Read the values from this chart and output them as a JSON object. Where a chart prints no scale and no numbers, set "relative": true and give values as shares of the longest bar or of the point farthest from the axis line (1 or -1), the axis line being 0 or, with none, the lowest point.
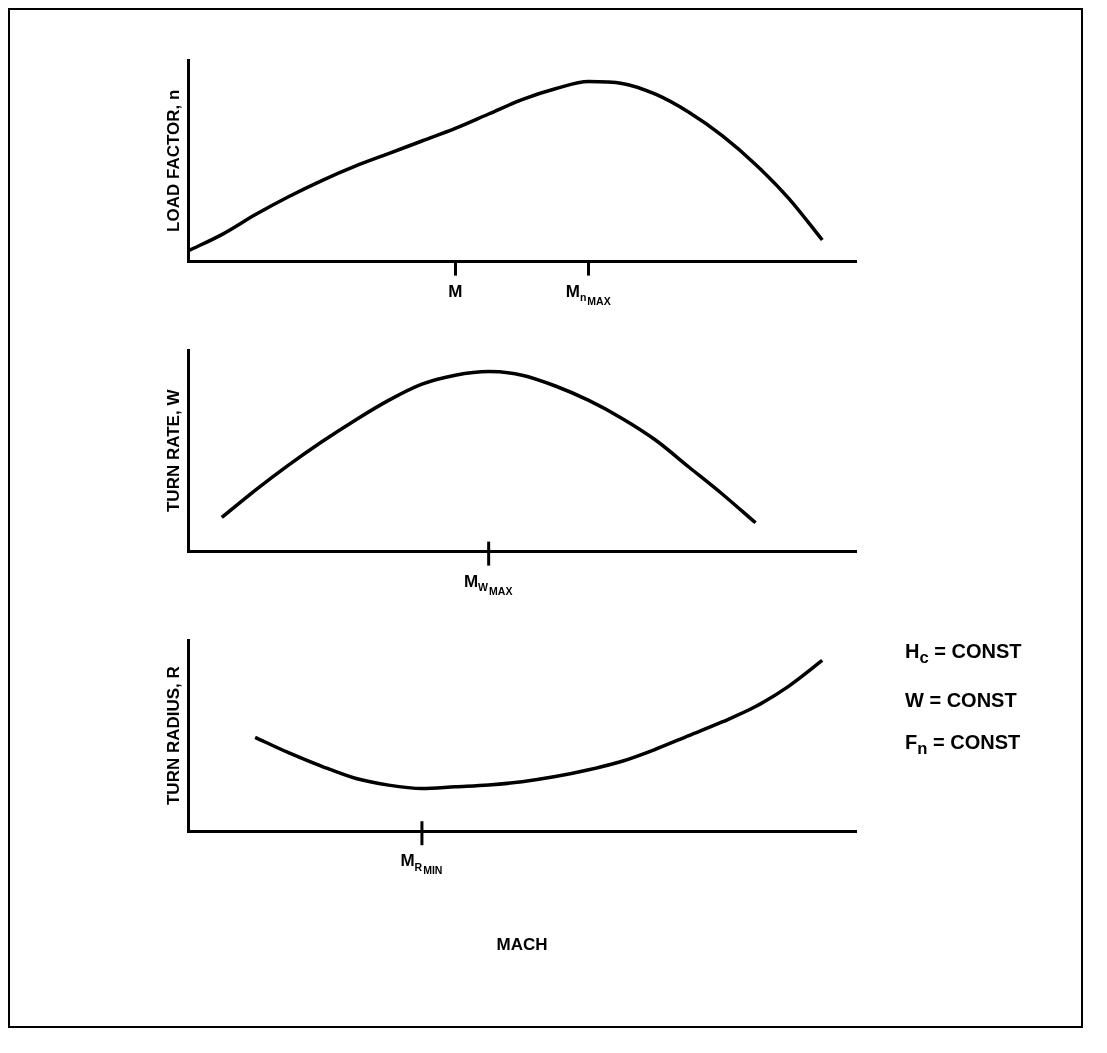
{
  "chart_data": [
    {
      "type": "line",
      "ylabel": "LOAD FACTOR, n",
      "relative": true,
      "color": "#000000",
      "legend": false,
      "grid": false,
      "marker": "none",
      "categories": [
        null,
        null,
        null,
        null,
        null,
        null,
        null,
        null,
        "M",
        null,
        null,
        null,
        "M$_{n}$$_{MAX}$",
        null,
        null,
        null,
        null,
        null,
        null,
        null,
        null
      ],
      "values": [
        0.06,
        0.15,
        0.26,
        0.36,
        0.45,
        0.53,
        0.6,
        0.67,
        0.74,
        0.82,
        0.9,
        0.96,
        1,
        0.99,
        0.93,
        0.83,
        0.7,
        0.54,
        0.35,
        0.12,
        null
      ]
    },
    {
      "type": "line",
      "ylabel": "TURN RATE, W",
      "relative": true,
      "color": "#000000",
      "legend": false,
      "grid": false,
      "marker": "none",
      "annotations": [
        "M$_{W}$$_{MAX}$"
      ],
      "categories": [
        null,
        null,
        null,
        null,
        null,
        null,
        null,
        null,
        null,
        null,
        null,
        null,
        null,
        null,
        null,
        null,
        null,
        null,
        null,
        null,
        null
      ],
      "values": [
        null,
        0.19,
        0.34,
        0.48,
        0.61,
        0.73,
        0.84,
        0.93,
        0.98,
        1,
        0.98,
        0.92,
        0.84,
        0.74,
        0.62,
        0.47,
        0.32,
        0.16,
        null,
        null,
        null
      ]
    },
    {
      "type": "line",
      "ylabel": "TURN RADIUS, R",
      "xlabel": "MACH",
      "relative": true,
      "color": "#000000",
      "legend": false,
      "grid": false,
      "marker": "none",
      "annotations": [
        "M$_{R}$$_{MIN}$",
        "H$_{c}$ = CONST",
        "W = CONST",
        "F$_{n}$ = CONST"
      ],
      "categories": [
        null,
        null,
        null,
        null,
        null,
        null,
        null,
        null,
        null,
        null,
        null,
        null,
        null,
        null,
        null,
        null,
        null,
        null,
        null,
        null,
        null
      ],
      "values": [
        null,
        null,
        0.55,
        0.46,
        0.38,
        0.31,
        0.27,
        0.25,
        0.26,
        0.27,
        0.29,
        0.32,
        0.36,
        0.41,
        0.48,
        0.56,
        0.64,
        0.73,
        0.85,
        1,
        null
      ]
    }
  ]
}
